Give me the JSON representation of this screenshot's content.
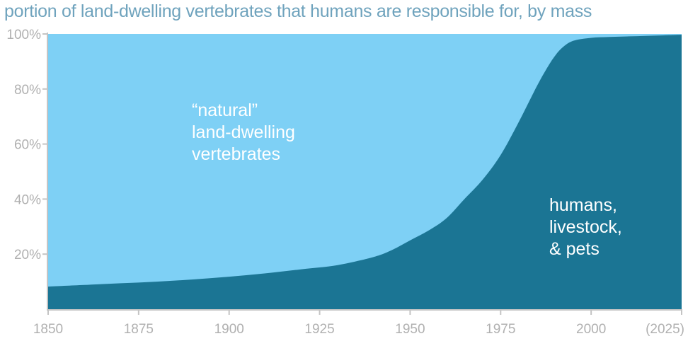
{
  "chart_data": {
    "type": "area",
    "title": "portion of land-dwelling vertebrates that humans are responsible for, by mass",
    "xlabel": "",
    "ylabel": "",
    "xlim": [
      1850,
      2025
    ],
    "ylim": [
      0,
      100
    ],
    "x_tick_labels": [
      "1850",
      "1875",
      "1900",
      "1925",
      "1950",
      "1975",
      "2000",
      "(2025)"
    ],
    "y_tick_labels": [
      "20%",
      "40%",
      "60%",
      "80%",
      "100%"
    ],
    "grid": false,
    "stacked": true,
    "x": [
      1850,
      1860,
      1870,
      1880,
      1890,
      1900,
      1910,
      1920,
      1930,
      1940,
      1945,
      1950,
      1955,
      1960,
      1965,
      1970,
      1975,
      1980,
      1985,
      1988,
      1990,
      1992,
      1995,
      2000,
      2005,
      2010,
      2015,
      2020,
      2025
    ],
    "series": [
      {
        "name": "humans, livestock, & pets",
        "label_lines": [
          "humans,",
          "livestock,",
          "& pets"
        ],
        "color": "#1b7594",
        "values": [
          8.2,
          8.8,
          9.4,
          10.0,
          10.8,
          11.8,
          13.0,
          14.5,
          16.0,
          19.0,
          21.5,
          25.0,
          28.5,
          33.0,
          40.0,
          47.0,
          56.0,
          68.0,
          81.0,
          88.0,
          92.0,
          95.0,
          97.5,
          98.6,
          98.9,
          99.1,
          99.3,
          99.5,
          99.7
        ]
      },
      {
        "name": "“natural” land-dwelling vertebrates",
        "label_lines": [
          "“natural”",
          "land-dwelling",
          "vertebrates"
        ],
        "color": "#7ed0f5"
      }
    ],
    "colors": {
      "title": "#6fa3bd",
      "tick_text": "#b0b0b0",
      "axis": "#c4c4c4"
    }
  }
}
